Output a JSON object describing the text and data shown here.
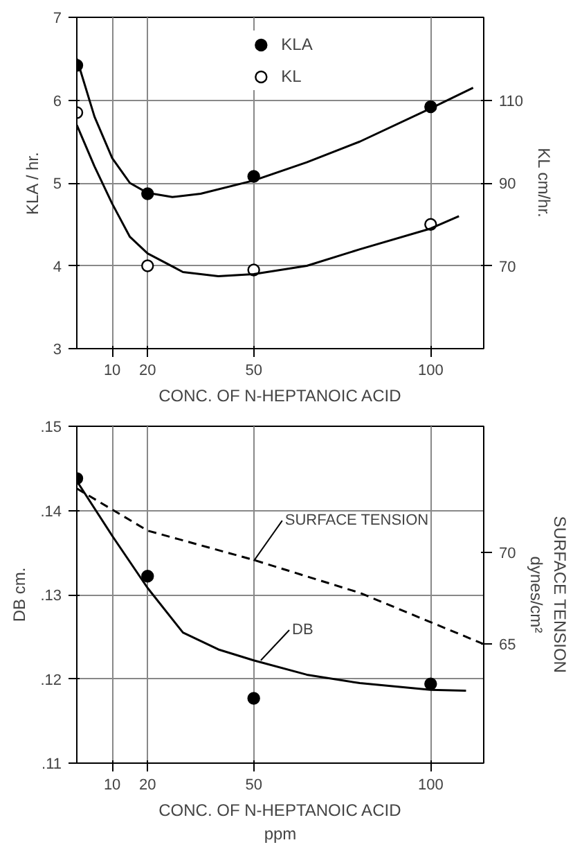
{
  "chart_data": [
    {
      "type": "scatter",
      "xlabel": "CONC. OF N-HEPTANOIC ACID",
      "ylabel": "KLA / hr.",
      "y2label": "KL cm/hr.",
      "xlim": [
        0,
        115
      ],
      "xticks": [
        10,
        20,
        50,
        100
      ],
      "ylim": [
        3,
        7
      ],
      "yticks": [
        3,
        4,
        5,
        6,
        7
      ],
      "y2lim": [
        50,
        130
      ],
      "y2ticks": [
        70,
        90,
        110
      ],
      "grid": true,
      "legend": "top",
      "series": [
        {
          "name": "KLA",
          "marker": "circle",
          "color": "#000000",
          "x": [
            0,
            20,
            50,
            100
          ],
          "values": [
            6.42,
            4.87,
            5.08,
            5.92
          ]
        },
        {
          "name": "KL",
          "marker": "circle",
          "axis": "y2",
          "color": "#ffffff",
          "x": [
            0,
            20,
            50,
            100
          ],
          "values": [
            107,
            70,
            69,
            80
          ]
        },
        {
          "type": "line",
          "color": "#000000",
          "line_style": "solid",
          "x": [
            0,
            5,
            10,
            15,
            20,
            27,
            35,
            50,
            65,
            80,
            100,
            112
          ],
          "values": [
            6.5,
            5.8,
            5.3,
            5.0,
            4.88,
            4.83,
            4.87,
            5.03,
            5.25,
            5.5,
            5.9,
            6.15
          ]
        },
        {
          "type": "line",
          "axis": "y2",
          "color": "#000000",
          "line_style": "solid",
          "x": [
            0,
            5,
            10,
            15,
            20,
            30,
            40,
            50,
            65,
            80,
            100,
            108
          ],
          "values": [
            104,
            94,
            85,
            77,
            73,
            68.5,
            67.5,
            68,
            70,
            74,
            79,
            82
          ]
        }
      ]
    },
    {
      "type": "scatter",
      "xlabel": "CONC. OF N-HEPTANOIC ACID\nppm",
      "ylabel": "DB cm.",
      "y2label": "SURFACE TENSION\ndynes/cm²",
      "xlim": [
        0,
        115
      ],
      "xticks": [
        10,
        20,
        50,
        100
      ],
      "ylim": [
        0.11,
        0.15
      ],
      "yticks": [
        {
          "value": 0.11,
          "label": ".11"
        },
        {
          "value": 0.12,
          "label": ".12"
        },
        {
          "value": 0.13,
          "label": ".13"
        },
        {
          "value": 0.14,
          "label": ".14"
        },
        {
          "value": 0.15,
          "label": ".15"
        }
      ],
      "y2lim": [
        58.5,
        76.9
      ],
      "y2ticks": [
        65,
        70
      ],
      "grid": true,
      "annotations": [
        {
          "text": "SURFACE TENSION",
          "x": 50,
          "y": 0.134
        },
        {
          "text": "DB",
          "x": 52,
          "y": 0.1222
        }
      ],
      "series": [
        {
          "marker": "circle",
          "color": "#000000",
          "x": [
            0,
            20,
            50,
            100
          ],
          "values": [
            0.1438,
            0.1322,
            0.1177,
            0.1194
          ]
        },
        {
          "type": "line",
          "color": "#000000",
          "line_style": "solid",
          "x": [
            0,
            10,
            20,
            30,
            40,
            50,
            65,
            80,
            100,
            110
          ],
          "values": [
            0.1435,
            0.137,
            0.1308,
            0.1255,
            0.1235,
            0.1222,
            0.1205,
            0.1195,
            0.1187,
            0.1186
          ]
        },
        {
          "type": "line",
          "axis": "y2",
          "color": "#000000",
          "line_style": "dashed",
          "x": [
            0,
            20,
            50,
            80,
            100,
            115
          ],
          "values": [
            73.5,
            71.2,
            69.6,
            67.8,
            66.2,
            65.0
          ]
        }
      ]
    }
  ]
}
